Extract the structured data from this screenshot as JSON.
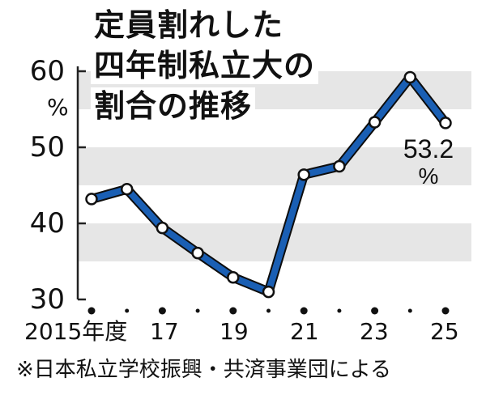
{
  "title_lines": [
    "定員割れした",
    "四年制私立大の",
    "割合の推移"
  ],
  "y_unit": "%",
  "source": "※日本私立学校振興・共済事業団による",
  "chart_data": {
    "type": "line",
    "title": "定員割れした四年制私立大の割合の推移",
    "x": [
      2015,
      2016,
      2017,
      2018,
      2019,
      2020,
      2021,
      2022,
      2023,
      2024,
      2025
    ],
    "x_tick_labels": [
      {
        "x": 2015,
        "text": "2015年度"
      },
      {
        "x": 2017,
        "text": "17"
      },
      {
        "x": 2019,
        "text": "19"
      },
      {
        "x": 2021,
        "text": "21"
      },
      {
        "x": 2023,
        "text": "23"
      },
      {
        "x": 2025,
        "text": "25"
      }
    ],
    "series": [
      {
        "values": [
          43.2,
          44.5,
          39.4,
          36.1,
          32.9,
          31.0,
          46.4,
          47.5,
          53.3,
          59.2,
          53.2
        ],
        "color": "#1a5fb4"
      }
    ],
    "ylim": [
      30,
      60
    ],
    "y_ticks": [
      30,
      40,
      50,
      60
    ],
    "grid_bands": [
      [
        35,
        40
      ],
      [
        45,
        50
      ],
      [
        55,
        60
      ]
    ],
    "band_color": "#e6e6e6",
    "annotations": [
      {
        "x": 2025,
        "text_value": "53.2",
        "text_unit": "%"
      }
    ]
  }
}
